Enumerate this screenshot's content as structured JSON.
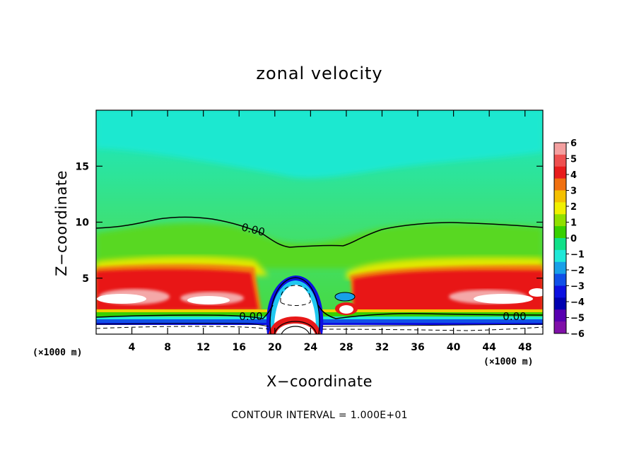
{
  "chart_data": {
    "type": "heatmap",
    "title": "zonal velocity",
    "xlabel": "X−coordinate",
    "ylabel": "Z−coordinate",
    "x_unit_note": "(×1000 m)",
    "xlim": [
      0,
      50
    ],
    "ylim": [
      0,
      20
    ],
    "x_ticks": [
      4,
      8,
      12,
      16,
      20,
      24,
      28,
      32,
      36,
      40,
      44,
      48
    ],
    "y_ticks": [
      5,
      10,
      15
    ],
    "colorbar": {
      "levels": [
        6,
        5,
        4,
        3,
        2,
        1,
        0,
        -1,
        -2,
        -3,
        -4,
        -5,
        -6
      ],
      "labels": [
        "6",
        "5",
        "4",
        "3",
        "2",
        "1",
        "0",
        "−1",
        "−2",
        "−3",
        "−4",
        "−5",
        "−6"
      ],
      "colors": [
        "#f4a0a0",
        "#ee5050",
        "#e81c1c",
        "#f07010",
        "#f4c000",
        "#f0f000",
        "#90e000",
        "#38d000",
        "#10e088",
        "#20e8d8",
        "#18a0e8",
        "#1050e8",
        "#0c10e0",
        "#0000b0",
        "#5800b0",
        "#8010a8"
      ]
    },
    "contour_labels": [
      "0.00",
      "0.00",
      "0.00"
    ],
    "contour_interval_label": "CONTOUR INTERVAL = 1.000E+01"
  }
}
